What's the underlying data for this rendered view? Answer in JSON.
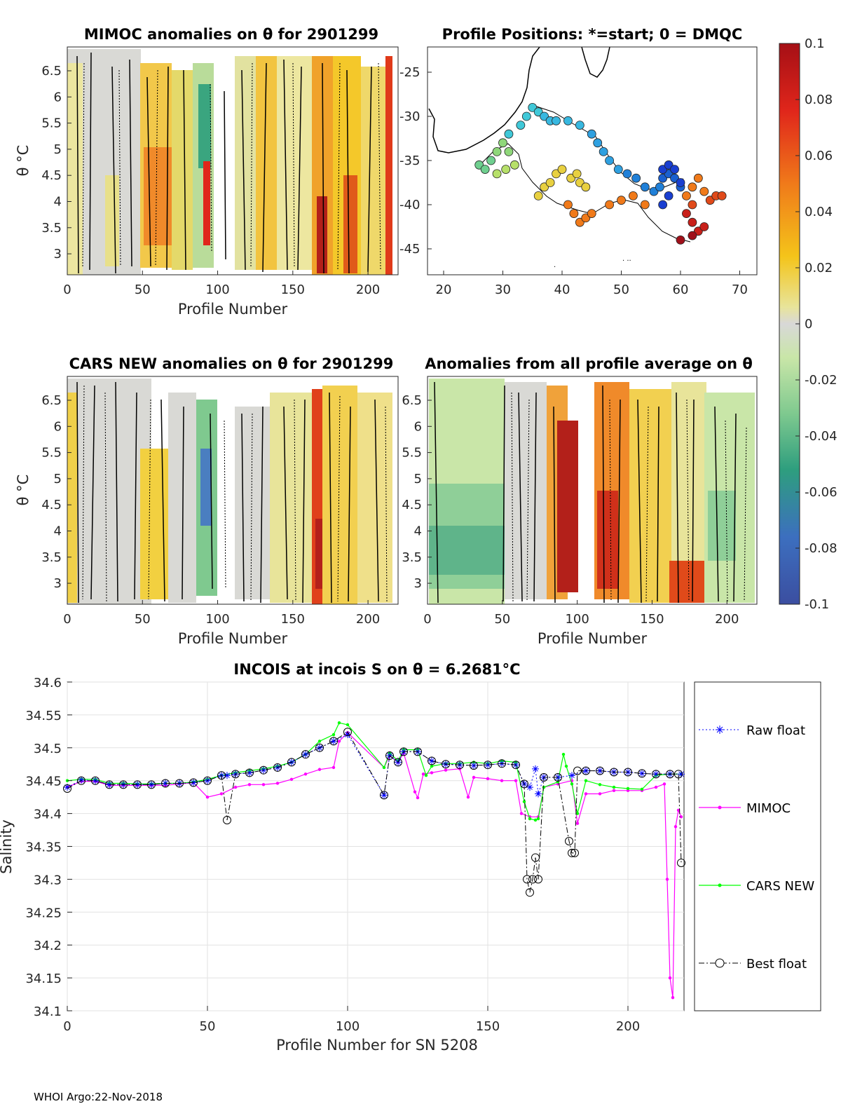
{
  "footer": "WHOI Argo:22-Nov-2018",
  "colorbar": {
    "ticks": [
      "0.1",
      "0.08",
      "0.06",
      "0.04",
      "0.02",
      "0",
      "-0.02",
      "-0.04",
      "-0.06",
      "-0.08",
      "-0.1"
    ],
    "range": [
      -0.1,
      0.1
    ]
  },
  "panel_mimoc": {
    "title": "MIMOC anomalies on θ  for 2901299",
    "ylabel": "θ °C",
    "xlabel": "Profile Number",
    "xticks": [
      "0",
      "50",
      "100",
      "150",
      "200"
    ],
    "yticks": [
      "6.5",
      "6",
      "5.5",
      "5",
      "4.5",
      "4",
      "3.5",
      "3"
    ]
  },
  "panel_positions": {
    "title": "Profile Positions: *=start; 0 = DMQC",
    "xticks": [
      "20",
      "30",
      "40",
      "50",
      "60",
      "70"
    ],
    "yticks": [
      "-25",
      "-30",
      "-35",
      "-40",
      "-45"
    ]
  },
  "panel_cars": {
    "title": "CARS NEW anomalies on θ for 2901299",
    "ylabel": "θ °C",
    "xlabel": "Profile Number",
    "xticks": [
      "0",
      "50",
      "100",
      "150",
      "200"
    ],
    "yticks": [
      "6.5",
      "6",
      "5.5",
      "5",
      "4.5",
      "4",
      "3.5",
      "3"
    ]
  },
  "panel_avg": {
    "title": "Anomalies from all profile average on θ",
    "xlabel": "Profile Number",
    "xticks": [
      "0",
      "50",
      "100",
      "150",
      "200"
    ],
    "yticks": [
      "6.5",
      "6",
      "5.5",
      "5",
      "4.5",
      "4",
      "3.5",
      "3"
    ]
  },
  "chart_data": {
    "type": "line",
    "title": "INCOIS at incois S on θ = 6.2681°C",
    "xlabel": "Profile Number for SN 5208",
    "ylabel": "Salinity",
    "xlim": [
      0,
      220
    ],
    "ylim": [
      34.1,
      34.6
    ],
    "xticks": [
      "0",
      "50",
      "100",
      "150",
      "200"
    ],
    "yticks": [
      "34.6",
      "34.55",
      "34.5",
      "34.45",
      "34.4",
      "34.35",
      "34.3",
      "34.25",
      "34.2",
      "34.15",
      "34.1"
    ],
    "legend": [
      "Raw float",
      "MIMOC",
      "CARS NEW",
      "Best float"
    ],
    "series": [
      {
        "name": "Raw float",
        "color": "#0000ff",
        "x": [
          0,
          5,
          10,
          15,
          20,
          25,
          30,
          35,
          40,
          45,
          50,
          55,
          57,
          60,
          65,
          70,
          75,
          80,
          85,
          90,
          95,
          100,
          113,
          115,
          118,
          120,
          125,
          130,
          135,
          140,
          145,
          150,
          155,
          160,
          163,
          165,
          167,
          168,
          170,
          175,
          180,
          185,
          190,
          195,
          200,
          205,
          210,
          215,
          219
        ],
        "y": [
          34.44,
          34.451,
          34.45,
          34.444,
          34.444,
          34.444,
          34.444,
          34.446,
          34.446,
          34.447,
          34.45,
          34.458,
          34.458,
          34.46,
          34.462,
          34.466,
          34.47,
          34.478,
          34.49,
          34.5,
          34.51,
          34.52,
          34.428,
          34.488,
          34.478,
          34.494,
          34.494,
          34.48,
          34.475,
          34.474,
          34.473,
          34.474,
          34.476,
          34.474,
          34.445,
          34.44,
          34.468,
          34.43,
          34.455,
          34.455,
          34.458,
          34.465,
          34.465,
          34.463,
          34.463,
          34.461,
          34.46,
          34.46,
          34.46
        ]
      },
      {
        "name": "MIMOC",
        "color": "#ff00ff",
        "x": [
          0,
          5,
          10,
          15,
          20,
          25,
          30,
          35,
          40,
          45,
          50,
          55,
          60,
          65,
          70,
          75,
          80,
          85,
          90,
          95,
          97,
          100,
          113,
          115,
          118,
          120,
          124,
          125,
          127,
          130,
          135,
          140,
          143,
          145,
          150,
          155,
          160,
          162,
          165,
          168,
          170,
          175,
          180,
          182,
          185,
          190,
          195,
          200,
          205,
          210,
          213,
          214,
          215,
          216,
          217,
          218,
          219
        ],
        "y": [
          34.44,
          34.449,
          34.449,
          34.443,
          34.443,
          34.443,
          34.443,
          34.443,
          34.445,
          34.447,
          34.425,
          34.43,
          34.44,
          34.444,
          34.444,
          34.446,
          34.452,
          34.46,
          34.467,
          34.47,
          34.51,
          34.523,
          34.47,
          34.488,
          34.478,
          34.492,
          34.433,
          34.424,
          34.46,
          34.462,
          34.466,
          34.468,
          34.425,
          34.455,
          34.453,
          34.45,
          34.45,
          34.4,
          34.395,
          34.395,
          34.44,
          34.445,
          34.45,
          34.385,
          34.43,
          34.43,
          34.435,
          34.435,
          34.435,
          34.44,
          34.445,
          34.3,
          34.15,
          34.12,
          34.38,
          34.405,
          34.395
        ]
      },
      {
        "name": "CARS NEW",
        "color": "#00ff00",
        "x": [
          0,
          5,
          10,
          15,
          20,
          25,
          30,
          35,
          40,
          45,
          50,
          55,
          60,
          65,
          70,
          75,
          80,
          85,
          90,
          95,
          97,
          100,
          113,
          115,
          118,
          120,
          125,
          128,
          130,
          135,
          140,
          145,
          150,
          155,
          160,
          163,
          165,
          167,
          168,
          170,
          175,
          177,
          178,
          180,
          182,
          185,
          190,
          195,
          200,
          205,
          210,
          215,
          219
        ],
        "y": [
          34.45,
          34.452,
          34.452,
          34.446,
          34.446,
          34.445,
          34.445,
          34.446,
          34.446,
          34.448,
          34.452,
          34.458,
          34.462,
          34.465,
          34.468,
          34.472,
          34.478,
          34.49,
          34.51,
          34.52,
          34.538,
          34.535,
          34.47,
          34.492,
          34.48,
          34.497,
          34.497,
          34.458,
          34.472,
          34.476,
          34.476,
          34.478,
          34.476,
          34.48,
          34.478,
          34.418,
          34.392,
          34.39,
          34.392,
          34.44,
          34.448,
          34.49,
          34.472,
          34.445,
          34.4,
          34.45,
          34.444,
          34.44,
          34.438,
          34.437,
          34.458,
          34.46,
          34.46
        ]
      },
      {
        "name": "Best float",
        "color": "#000000",
        "x": [
          0,
          5,
          10,
          15,
          20,
          25,
          30,
          35,
          40,
          45,
          50,
          55,
          57,
          60,
          65,
          70,
          75,
          80,
          85,
          90,
          95,
          100,
          113,
          115,
          118,
          120,
          125,
          130,
          135,
          140,
          145,
          150,
          155,
          160,
          163,
          164,
          165,
          166,
          167,
          168,
          170,
          175,
          179,
          180,
          181,
          182,
          185,
          190,
          195,
          200,
          205,
          210,
          215,
          218,
          219
        ],
        "y": [
          34.438,
          34.45,
          34.45,
          34.444,
          34.444,
          34.444,
          34.444,
          34.446,
          34.446,
          34.447,
          34.45,
          34.458,
          34.39,
          34.46,
          34.462,
          34.466,
          34.47,
          34.478,
          34.49,
          34.5,
          34.51,
          34.524,
          34.428,
          34.488,
          34.478,
          34.494,
          34.494,
          34.48,
          34.475,
          34.474,
          34.473,
          34.474,
          34.476,
          34.474,
          34.445,
          34.3,
          34.28,
          34.3,
          34.333,
          34.3,
          34.455,
          34.455,
          34.358,
          34.34,
          34.34,
          34.465,
          34.465,
          34.465,
          34.463,
          34.463,
          34.461,
          34.46,
          34.46,
          34.46,
          34.325
        ]
      }
    ]
  }
}
